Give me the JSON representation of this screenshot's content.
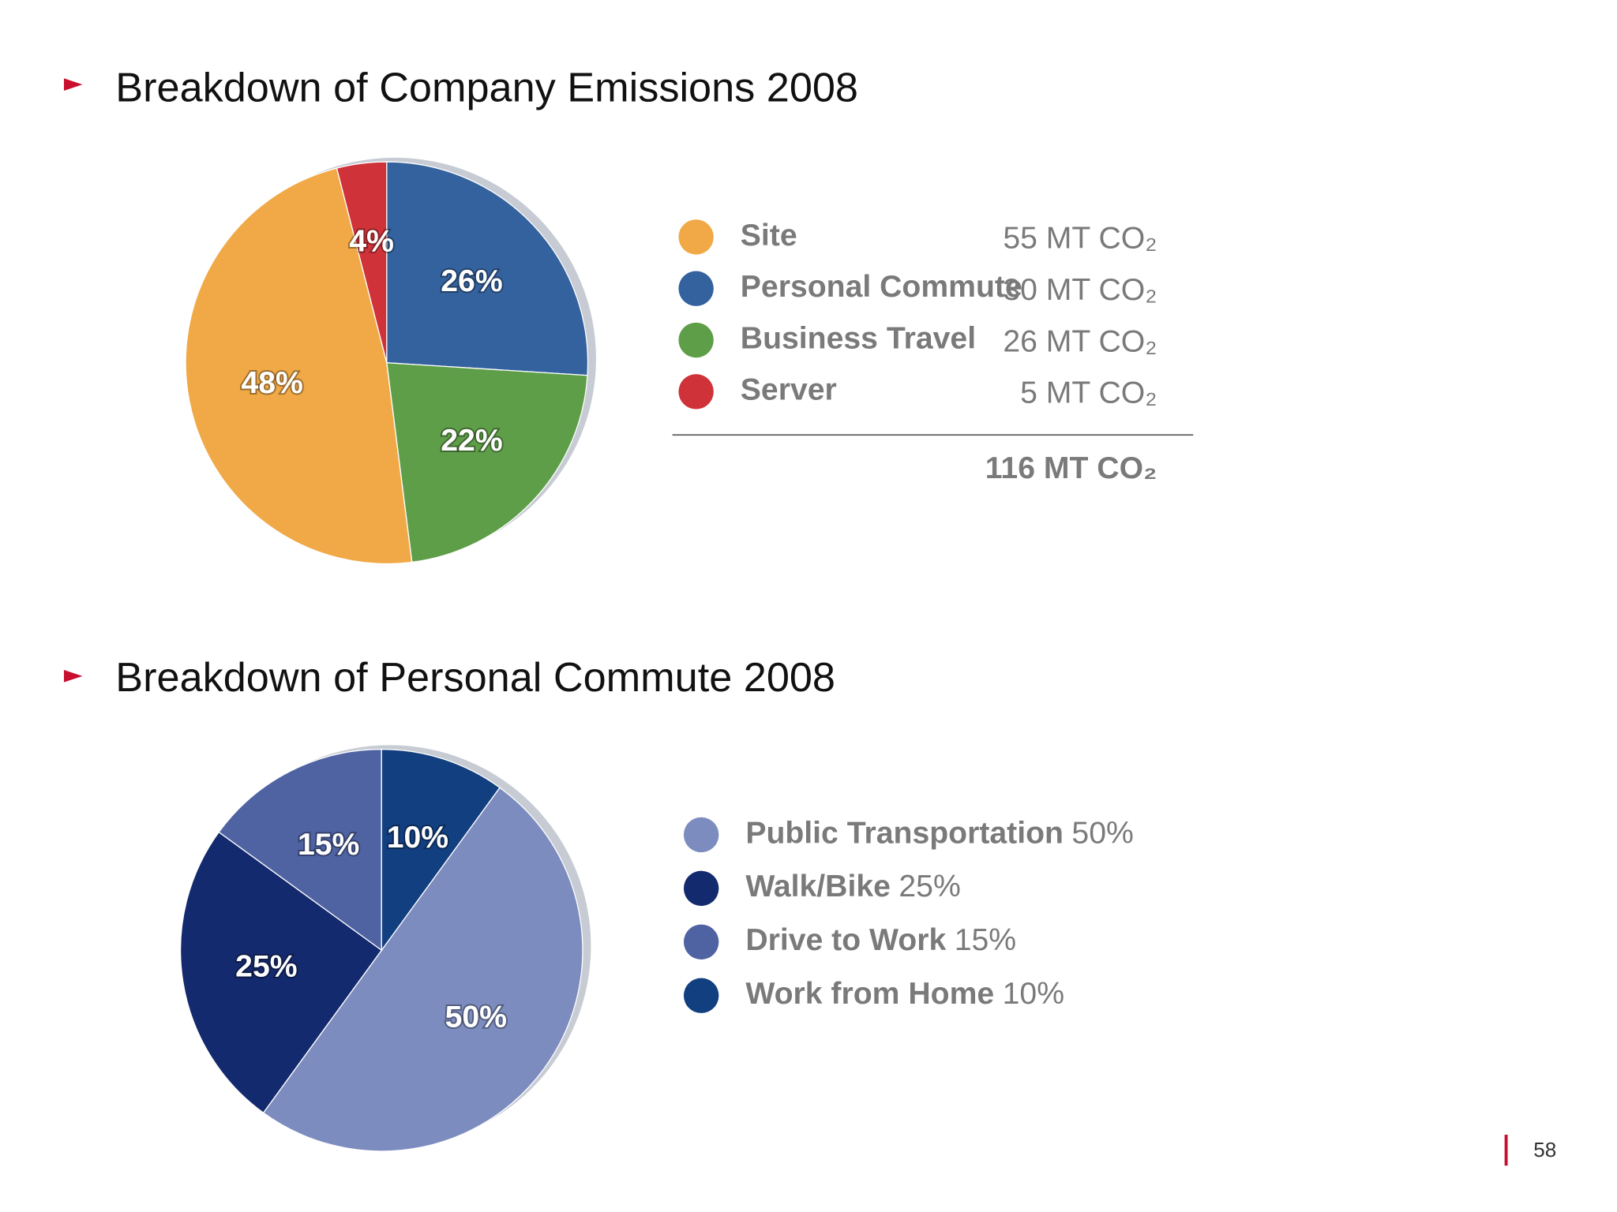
{
  "chart_data": [
    {
      "type": "pie",
      "title": "Breakdown of Company Emissions 2008",
      "categories": [
        "Site",
        "Personal Commute",
        "Business Travel",
        "Server"
      ],
      "values": [
        48,
        26,
        22,
        4
      ],
      "value_labels": [
        "48%",
        "26%",
        "22%",
        "4%"
      ],
      "colors": [
        "#f0a946",
        "#34629e",
        "#5f9e48",
        "#cf3238"
      ],
      "amounts": [
        "55 MT CO₂",
        "30 MT CO₂",
        "26 MT CO₂",
        "5 MT CO₂"
      ],
      "total": "116 MT CO₂"
    },
    {
      "type": "pie",
      "title": "Breakdown of Personal Commute 2008",
      "categories": [
        "Public Transportation",
        "Walk/Bike",
        "Drive to Work",
        "Work from Home"
      ],
      "values": [
        50,
        25,
        15,
        10
      ],
      "value_labels": [
        "50%",
        "25%",
        "15%",
        "10%"
      ],
      "colors": [
        "#7d8cbf",
        "#142a6e",
        "#4f63a3",
        "#123f80"
      ]
    }
  ],
  "page_number": "58"
}
